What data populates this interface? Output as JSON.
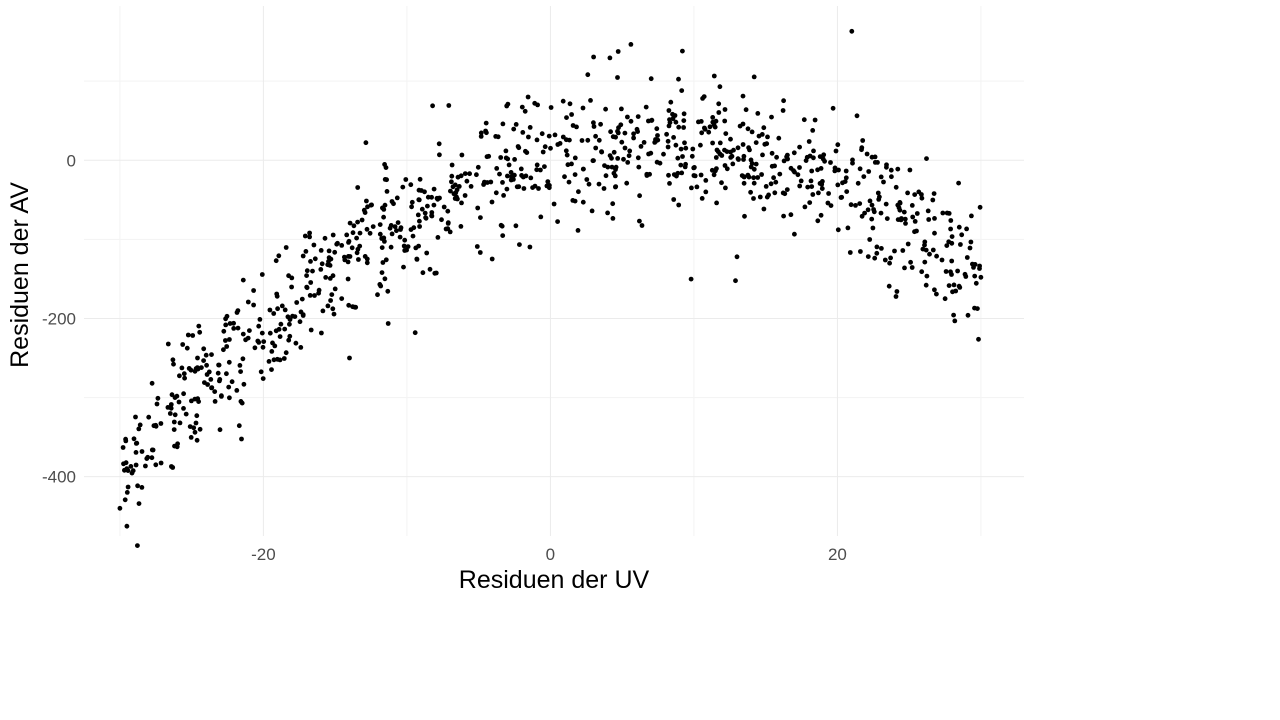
{
  "chart_data": {
    "type": "scatter",
    "title": "",
    "xlabel": "Residuen der UV",
    "ylabel": "Residuen der AV",
    "xlim": [
      -32.5,
      33
    ],
    "ylim": [
      -475,
      195
    ],
    "x_ticks": [
      -20,
      0,
      20
    ],
    "x_tick_labels": [
      "-20",
      "0",
      "20"
    ],
    "y_ticks": [
      -400,
      -200,
      0
    ],
    "y_tick_labels": [
      "-400",
      "-200",
      "0"
    ],
    "x_minor_ticks": [
      -30,
      -10,
      10,
      30
    ],
    "y_minor_ticks": [
      -300,
      -100,
      100
    ],
    "grid": true,
    "legend": "none",
    "point_color": "#000000",
    "trend": {
      "model": "quadratic",
      "vertex_x": 7,
      "vertex_y": 20,
      "curvature": 0.31,
      "n_points": 1000,
      "x_range": [
        -30,
        30
      ]
    },
    "notable_points": [
      {
        "x": -30,
        "y": -440
      },
      {
        "x": -27.5,
        "y": -385
      },
      {
        "x": -14,
        "y": -250
      },
      {
        "x": 9.2,
        "y": 138
      },
      {
        "x": 21,
        "y": 163
      },
      {
        "x": 27.5,
        "y": -175
      },
      {
        "x": 30,
        "y": -148
      },
      {
        "x": 13,
        "y": -122
      }
    ]
  }
}
